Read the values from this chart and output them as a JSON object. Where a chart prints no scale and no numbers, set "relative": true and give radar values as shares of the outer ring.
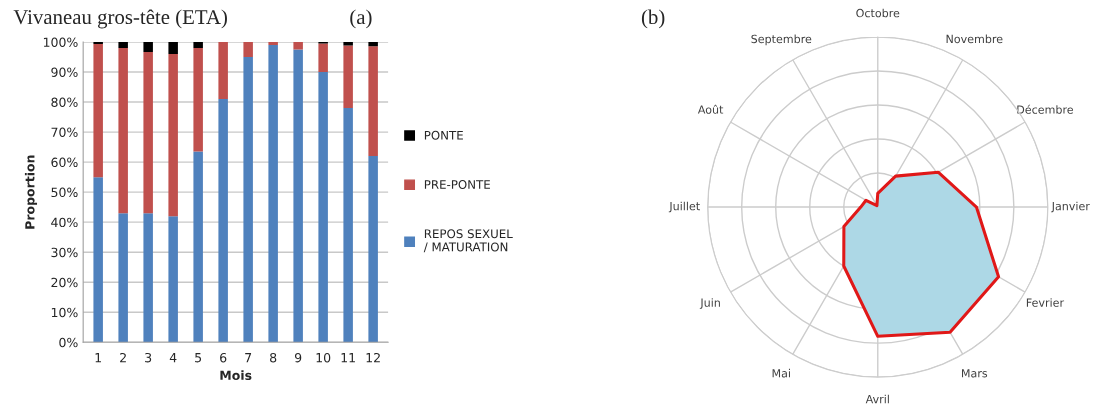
{
  "chart_data": [
    {
      "type": "bar",
      "title": "Vivaneau gros-tête (ETA)",
      "annotations": [
        "(a)"
      ],
      "xlabel": "Mois",
      "ylabel": "Proportion",
      "categories": [
        "1",
        "2",
        "3",
        "4",
        "5",
        "6",
        "7",
        "8",
        "9",
        "10",
        "11",
        "12"
      ],
      "stacked": true,
      "series": [
        {
          "name": "REPOS SEXUEL\n/ MATURATION",
          "color": "#4f81bd",
          "values": [
            55,
            43,
            43,
            42,
            63.5,
            81,
            95,
            99,
            97.5,
            90,
            78,
            62
          ]
        },
        {
          "name": "PRE-PONTE",
          "color": "#c0504d",
          "values": [
            44.3,
            55,
            53.7,
            54,
            34.5,
            19,
            5,
            1,
            2.5,
            9.5,
            20.8,
            36.6
          ]
        },
        {
          "name": "PONTE",
          "color": "#000000",
          "values": [
            0.7,
            2,
            3.3,
            4,
            2,
            0,
            0,
            0,
            0,
            0.5,
            1.2,
            1.4
          ]
        }
      ],
      "ylim": [
        0,
        100
      ],
      "yticks": [
        {
          "value": 0,
          "label": "0%"
        },
        {
          "value": 10,
          "label": "10%"
        },
        {
          "value": 20,
          "label": "20%"
        },
        {
          "value": 30,
          "label": "30%"
        },
        {
          "value": 40,
          "label": "40%"
        },
        {
          "value": 50,
          "label": "50%"
        },
        {
          "value": 60,
          "label": "60%"
        },
        {
          "value": 70,
          "label": "70%"
        },
        {
          "value": 80,
          "label": "80%"
        },
        {
          "value": 90,
          "label": "90%"
        },
        {
          "value": 100,
          "label": "100%"
        }
      ],
      "grid": "y",
      "legend": "right"
    },
    {
      "type": "radar",
      "annotations": [
        "(b)"
      ],
      "relative": true,
      "grid": true,
      "categories": [
        "Octobre",
        "Novembre",
        "Décembre",
        "Janvier",
        "Fevrier",
        "Mars",
        "Avril",
        "Mai",
        "Juin",
        "Juillet",
        "Août",
        "Septembre"
      ],
      "series": [
        {
          "color": "#e01818",
          "values": [
            0.08,
            0.21,
            0.41,
            0.58,
            0.82,
            0.85,
            0.76,
            0.4,
            0.23,
            0.1,
            0.08,
            0.01
          ]
        }
      ]
    }
  ]
}
